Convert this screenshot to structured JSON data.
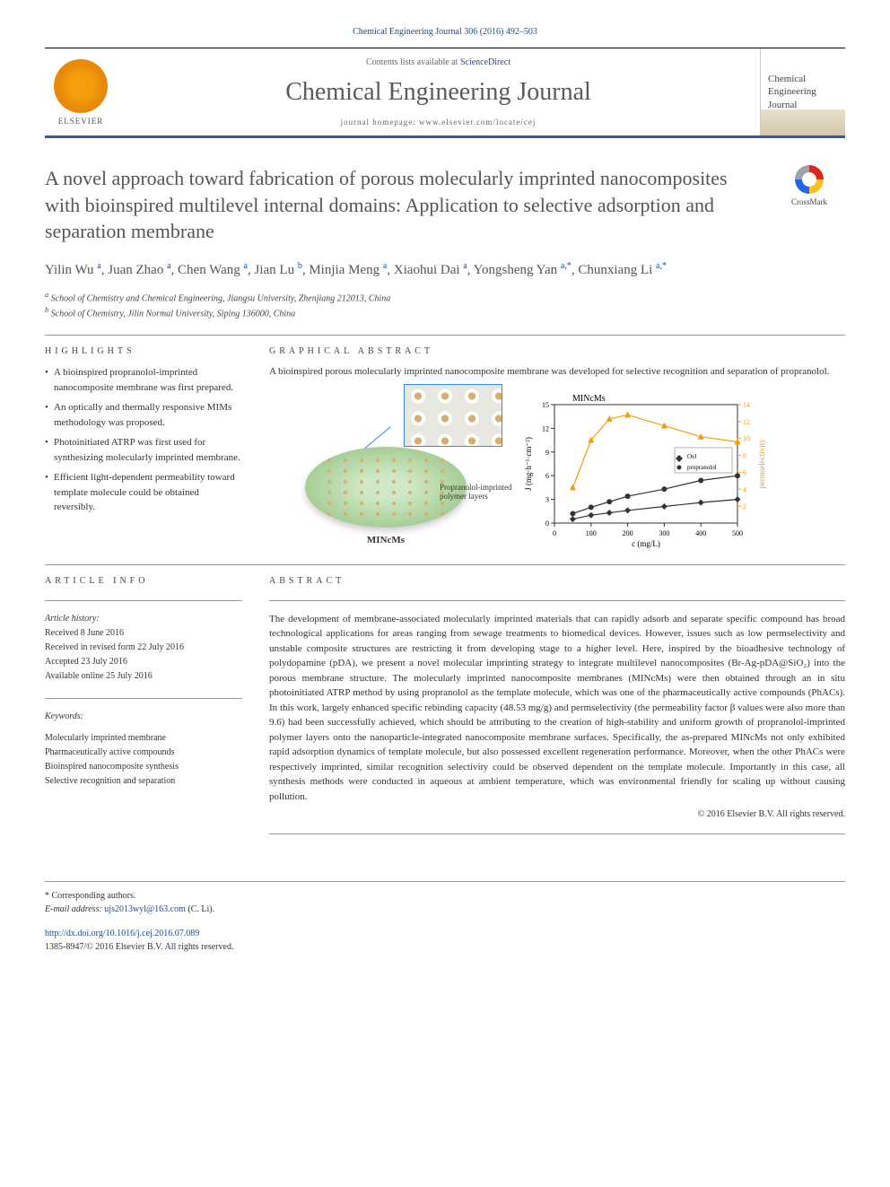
{
  "citation": "Chemical Engineering Journal 306 (2016) 492–503",
  "header": {
    "contents_prefix": "Contents lists available at ",
    "contents_link": "ScienceDirect",
    "journal_name": "Chemical Engineering Journal",
    "homepage_label": "journal homepage: www.elsevier.com/locate/cej",
    "publisher": "ELSEVIER",
    "cover_text": "Chemical Engineering Journal"
  },
  "crossmark": {
    "label": "CrossMark"
  },
  "title": "A novel approach toward fabrication of porous molecularly imprinted nanocomposites with bioinspired multilevel internal domains: Application to selective adsorption and separation membrane",
  "authors_html": "Yilin Wu <sup>a</sup>, Juan Zhao <sup>a</sup>, Chen Wang <sup>a</sup>, Jian Lu <sup>b</sup>, Minjia Meng <sup>a</sup>, Xiaohui Dai <sup>a</sup>, Yongsheng Yan <sup>a,*</sup>, Chunxiang Li <sup>a,*</sup>",
  "affiliations": [
    "a School of Chemistry and Chemical Engineering, Jiangsu University, Zhenjiang 212013, China",
    "b School of Chemistry, Jilin Normal University, Siping 136000, China"
  ],
  "highlights_label": "HIGHLIGHTS",
  "highlights": [
    "A bioinspired propranolol-imprinted nanocomposite membrane was first prepared.",
    "An optically and thermally responsive MIMs methodology was proposed.",
    "Photoinitiated ATRP was first used for synthesizing molecularly imprinted membrane.",
    "Efficient light-dependent permeability toward template molecule could be obtained reversibly."
  ],
  "graphical_label": "GRAPHICAL ABSTRACT",
  "graphical_caption": "A bioinspired porous molecularly imprinted nanocomposite membrane was developed for selective recognition and separation of propranolol.",
  "graphical": {
    "polymer_layer_label": "Propranolol-imprinted polymer layers",
    "mincms_label": "MINcMs",
    "chart": {
      "type": "line-scatter-dual-axis",
      "title": "MINcMs",
      "xlabel": "c (mg/L)",
      "ylabel_left": "J (mg·h⁻¹·cm⁻²)",
      "ylabel_right": "permselectivity",
      "xlim": [
        0,
        500
      ],
      "xtick_step": 100,
      "ylim_left": [
        0,
        15
      ],
      "ytick_left": [
        0,
        3,
        6,
        9,
        12,
        15
      ],
      "ylim_right": [
        0,
        14
      ],
      "ytick_right": [
        2,
        4,
        6,
        8,
        10,
        12,
        14
      ],
      "series": [
        {
          "name": "Ovl",
          "marker": "diamond",
          "color": "#333333",
          "x": [
            50,
            100,
            150,
            200,
            300,
            400,
            500
          ],
          "y_left": [
            0.5,
            1.0,
            1.3,
            1.6,
            2.1,
            2.6,
            3.0
          ]
        },
        {
          "name": "propranolol",
          "marker": "circle",
          "color": "#333333",
          "x": [
            50,
            100,
            150,
            200,
            300,
            400,
            500
          ],
          "y_left": [
            1.2,
            2.0,
            2.7,
            3.4,
            4.3,
            5.4,
            6.0
          ]
        },
        {
          "name": "permselectivity",
          "marker": "triangle",
          "color": "#f59e0b",
          "x": [
            50,
            100,
            150,
            200,
            300,
            400,
            500
          ],
          "y_right": [
            4.2,
            9.8,
            12.3,
            12.8,
            11.5,
            10.2,
            9.6
          ]
        }
      ],
      "grid_color": "#cccccc",
      "background_color": "#ffffff",
      "title_fontsize": 10,
      "label_fontsize": 9,
      "tick_fontsize": 8
    }
  },
  "article_info_label": "ARTICLE INFO",
  "article_info": {
    "history_head": "Article history:",
    "received": "Received 8 June 2016",
    "revised": "Received in revised form 22 July 2016",
    "accepted": "Accepted 23 July 2016",
    "online": "Available online 25 July 2016",
    "keywords_head": "Keywords:",
    "keywords": [
      "Molecularly imprinted membrane",
      "Pharmaceutically active compounds",
      "Bioinspired nanocomposite synthesis",
      "Selective recognition and separation"
    ]
  },
  "abstract_label": "ABSTRACT",
  "abstract": "The development of membrane-associated molecularly imprinted materials that can rapidly adsorb and separate specific compound has broad technological applications for areas ranging from sewage treatments to biomedical devices. However, issues such as low permselectivity and unstable composite structures are restricting it from developing stage to a higher level. Here, inspired by the bioadhesive technology of polydopamine (pDA), we present a novel molecular imprinting strategy to integrate multilevel nanocomposites (Br-Ag-pDA@SiO₂) into the porous membrane structure. The molecularly imprinted nanocomposite membranes (MINcMs) were then obtained through an in situ photoinitiated ATRP method by using propranolol as the template molecule, which was one of the pharmaceutically active compounds (PhACs). In this work, largely enhanced specific rebinding capacity (48.53 mg/g) and permselectivity (the permeability factor β values were also more than 9.6) had been successfully achieved, which should be attributing to the creation of high-stability and uniform growth of propranolol-imprinted polymer layers onto the nanoparticle-integrated nanocomposite membrane surfaces. Specifically, the as-prepared MINcMs not only exhibited rapid adsorption dynamics of template molecule, but also possessed excellent regeneration performance. Moreover, when the other PhACs were respectively imprinted, similar recognition selectivity could be observed dependent on the template molecule. Importantly in this case, all synthesis methods were conducted in aqueous at ambient temperature, which was environmental friendly for scaling up without causing pollution.",
  "copyright": "© 2016 Elsevier B.V. All rights reserved.",
  "footer": {
    "corresponding": "* Corresponding authors.",
    "email_label": "E-mail address: ",
    "email": "ujs2013wyl@163.com",
    "email_suffix": " (C. Li).",
    "doi": "http://dx.doi.org/10.1016/j.cej.2016.07.089",
    "issn": "1385-8947/© 2016 Elsevier B.V. All rights reserved."
  },
  "colors": {
    "accent_blue": "#1a4d8f",
    "border_blue": "#3b5998",
    "text_gray": "#555555",
    "elsevier_orange": "#f59e0b"
  }
}
